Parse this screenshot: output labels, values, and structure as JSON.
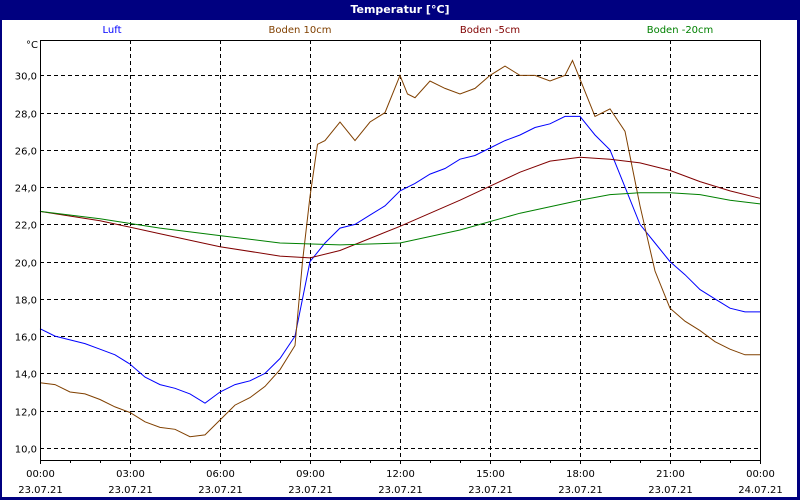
{
  "window": {
    "title": "Temperatur [°C]"
  },
  "chart_data": {
    "type": "line",
    "title": "Temperatur [°C]",
    "ylabel": "°C",
    "ylim": [
      9.35,
      31.9
    ],
    "xlim_hours": [
      0,
      24
    ],
    "grid": true,
    "legend_placement": "top",
    "yticks": [
      "10,0",
      "12,0",
      "14,0",
      "16,0",
      "18,0",
      "20,0",
      "22,0",
      "24,0",
      "26,0",
      "28,0",
      "30,0"
    ],
    "ytick_values": [
      10,
      12,
      14,
      16,
      18,
      20,
      22,
      24,
      26,
      28,
      30
    ],
    "xticks": [
      {
        "time": "00:00",
        "date": "23.07.21"
      },
      {
        "time": "03:00",
        "date": "23.07.21"
      },
      {
        "time": "06:00",
        "date": "23.07.21"
      },
      {
        "time": "09:00",
        "date": "23.07.21"
      },
      {
        "time": "12:00",
        "date": "23.07.21"
      },
      {
        "time": "15:00",
        "date": "23.07.21"
      },
      {
        "time": "18:00",
        "date": "23.07.21"
      },
      {
        "time": "21:00",
        "date": "23.07.21"
      },
      {
        "time": "00:00",
        "date": "24.07.21"
      }
    ],
    "series": [
      {
        "name": "Luft",
        "color": "#0000ff",
        "x": [
          0,
          0.5,
          1,
          1.5,
          2,
          2.5,
          3,
          3.5,
          4,
          4.5,
          5,
          5.5,
          6,
          6.5,
          7,
          7.5,
          8,
          8.5,
          8.75,
          9,
          9.5,
          10,
          10.5,
          11,
          11.5,
          12,
          12.5,
          13,
          13.5,
          14,
          14.5,
          15,
          15.5,
          16,
          16.5,
          17,
          17.5,
          18,
          18.5,
          19,
          19.5,
          20,
          20.5,
          21,
          21.5,
          22,
          22.5,
          23,
          23.5,
          24
        ],
        "y": [
          16.4,
          16.0,
          15.8,
          15.6,
          15.3,
          15.0,
          14.5,
          13.8,
          13.4,
          13.2,
          12.9,
          12.4,
          13.0,
          13.4,
          13.6,
          14.0,
          14.8,
          16.0,
          18.0,
          20.0,
          21.0,
          21.8,
          22.0,
          22.5,
          23.0,
          23.8,
          24.2,
          24.7,
          25.0,
          25.5,
          25.7,
          26.1,
          26.5,
          26.8,
          27.2,
          27.4,
          27.8,
          27.8,
          26.8,
          26.0,
          24.0,
          22.0,
          21.0,
          20.0,
          19.3,
          18.5,
          18.0,
          17.5,
          17.3,
          17.3
        ]
      },
      {
        "name": "Boden 10cm",
        "color": "#804000",
        "x": [
          0,
          0.5,
          1,
          1.5,
          2,
          2.5,
          3,
          3.5,
          4,
          4.5,
          5,
          5.5,
          6,
          6.5,
          7,
          7.5,
          8,
          8.5,
          8.75,
          9,
          9.25,
          9.5,
          10,
          10.5,
          11,
          11.5,
          12,
          12.25,
          12.5,
          13,
          13.5,
          14,
          14.5,
          15,
          15.5,
          16,
          16.5,
          17,
          17.5,
          17.75,
          18,
          18.5,
          19,
          19.5,
          20,
          20.5,
          21,
          21.5,
          22,
          22.5,
          23,
          23.5,
          24
        ],
        "y": [
          13.5,
          13.4,
          13.0,
          12.9,
          12.6,
          12.2,
          11.9,
          11.4,
          11.1,
          11.0,
          10.6,
          10.7,
          11.5,
          12.3,
          12.7,
          13.3,
          14.2,
          15.5,
          20.0,
          23.5,
          26.3,
          26.5,
          27.5,
          26.5,
          27.5,
          28.0,
          30.0,
          29.0,
          28.8,
          29.7,
          29.3,
          29.0,
          29.3,
          30.0,
          30.5,
          30.0,
          30.0,
          29.7,
          30.0,
          30.8,
          29.8,
          27.8,
          28.2,
          27.0,
          23.0,
          19.5,
          17.5,
          16.8,
          16.3,
          15.7,
          15.3,
          15.0,
          15.0
        ]
      },
      {
        "name": "Boden -5cm",
        "color": "#800000",
        "x": [
          0,
          2,
          4,
          6,
          8,
          9,
          10,
          12,
          14,
          16,
          17,
          18,
          19,
          20,
          21,
          22,
          23,
          24
        ],
        "y": [
          22.7,
          22.2,
          21.5,
          20.8,
          20.3,
          20.2,
          20.6,
          21.9,
          23.3,
          24.8,
          25.4,
          25.6,
          25.5,
          25.3,
          24.9,
          24.3,
          23.8,
          23.4
        ]
      },
      {
        "name": "Boden -20cm",
        "color": "#008000",
        "x": [
          0,
          2,
          4,
          6,
          8,
          10,
          12,
          14,
          16,
          18,
          19,
          20,
          21,
          22,
          23,
          24
        ],
        "y": [
          22.7,
          22.3,
          21.8,
          21.4,
          21.0,
          20.9,
          21.0,
          21.7,
          22.6,
          23.3,
          23.6,
          23.7,
          23.7,
          23.6,
          23.3,
          23.1
        ]
      }
    ]
  }
}
